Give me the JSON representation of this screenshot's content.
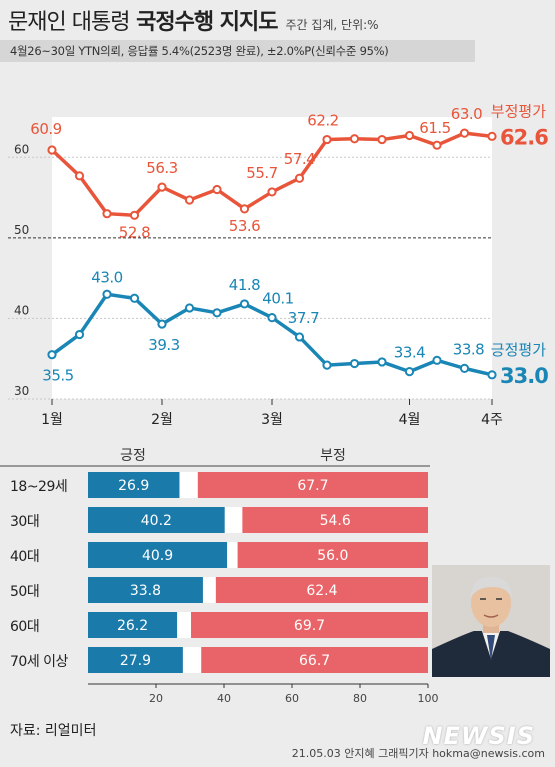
{
  "header": {
    "title_prefix": "문재인 대통령",
    "title_main": "국정수행 지지도",
    "title_note": "주간 집계, 단위:%",
    "subtitle": "4월26~30일 YTN의뢰, 응답률 5.4%(2523명 완료), ±2.0%P(신뢰수준 95%)"
  },
  "chart_data": [
    {
      "type": "line",
      "x_ticks": [
        "1월",
        "2월",
        "3월",
        "4월",
        "4주"
      ],
      "y_ticks": [
        30,
        40,
        50,
        60
      ],
      "ylim": [
        30,
        65
      ],
      "grid": true,
      "series": [
        {
          "name": "부정평가",
          "color": "#e8553a",
          "values": [
            60.9,
            57.7,
            53.0,
            52.8,
            56.3,
            54.7,
            56.0,
            53.6,
            55.7,
            57.4,
            62.2,
            62.3,
            62.2,
            62.7,
            61.5,
            63.0,
            62.6
          ],
          "labels": [
            "60.9",
            "",
            "",
            "52.8",
            "56.3",
            "",
            "",
            "53.6",
            "55.7",
            "57.4",
            "62.2",
            "",
            "",
            "",
            "61.5",
            "63.0",
            "62.6"
          ]
        },
        {
          "name": "긍정평가",
          "color": "#1a86b6",
          "values": [
            35.5,
            38.0,
            43.0,
            42.5,
            39.3,
            41.3,
            40.7,
            41.8,
            40.1,
            37.7,
            34.2,
            34.4,
            34.6,
            33.4,
            34.8,
            33.8,
            33.0
          ],
          "labels": [
            "35.5",
            "",
            "43.0",
            "",
            "39.3",
            "",
            "",
            "41.8",
            "40.1",
            "37.7",
            "",
            "",
            "",
            "33.4",
            "",
            "33.8",
            "33.0"
          ]
        }
      ]
    },
    {
      "type": "bar",
      "stacked": true,
      "legend": [
        "긍정",
        "부정"
      ],
      "colors": [
        "#1a7aaa",
        "#e96468"
      ],
      "categories": [
        "18~29세",
        "30대",
        "40대",
        "50대",
        "60대",
        "70세 이상"
      ],
      "positive": [
        26.9,
        40.2,
        40.9,
        33.8,
        26.2,
        27.9
      ],
      "negative": [
        67.7,
        54.6,
        56.0,
        62.4,
        69.7,
        66.7
      ],
      "x_ticks": [
        20,
        40,
        60,
        80,
        100
      ],
      "xlim": [
        0,
        100
      ]
    }
  ],
  "footer": {
    "source": "자료: 리얼미터",
    "credit": "21.05.03 안지혜 그래픽기자 hokma@newsis.com",
    "watermark": "NEWSIS"
  }
}
